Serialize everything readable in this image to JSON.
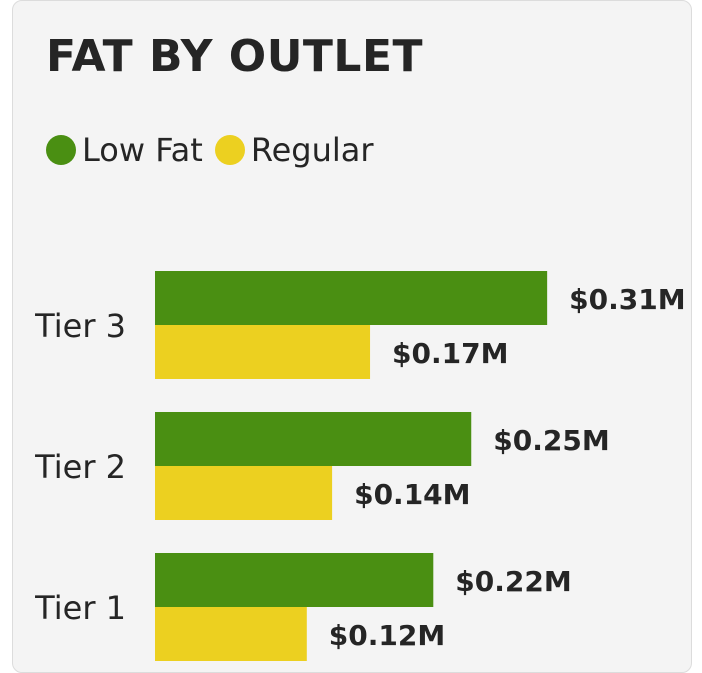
{
  "chart_data": {
    "type": "bar",
    "orientation": "horizontal",
    "title": "FAT BY OUTLET",
    "categories": [
      "Tier 3",
      "Tier 2",
      "Tier 1"
    ],
    "series": [
      {
        "name": "Low Fat",
        "color": "#4a8f12",
        "values": [
          0.31,
          0.25,
          0.22
        ],
        "labels": [
          "$0.31M",
          "$0.25M",
          "$0.22M"
        ]
      },
      {
        "name": "Regular",
        "color": "#ecd020",
        "values": [
          0.17,
          0.14,
          0.12
        ],
        "labels": [
          "$0.17M",
          "$0.14M",
          "$0.12M"
        ]
      }
    ],
    "unit": "$M",
    "legend_position": "top-left",
    "grid": false
  }
}
